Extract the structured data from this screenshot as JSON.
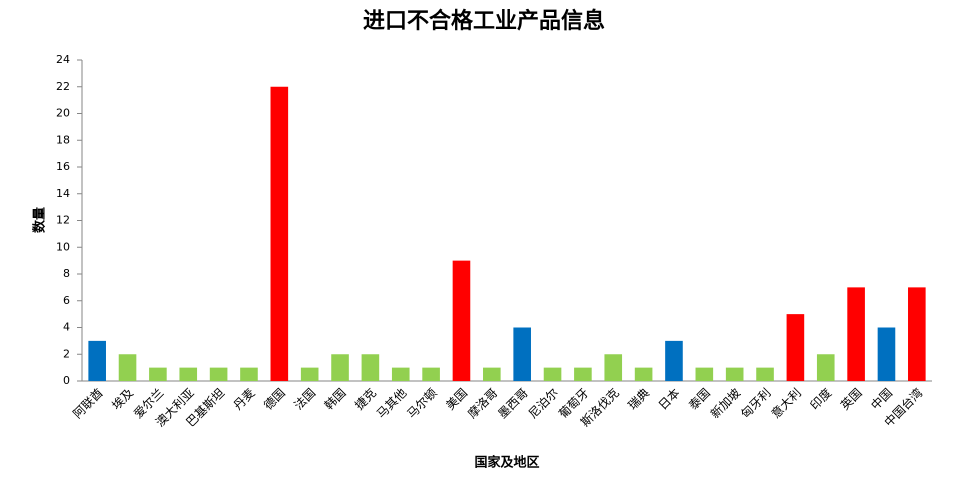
{
  "chart_data": {
    "type": "bar",
    "title": "进口不合格工业产品信息",
    "x_label": "国家及地区",
    "y_label": "数量",
    "categories": [
      "阿联酋",
      "埃及",
      "爱尔兰",
      "澳大利亚",
      "巴基斯坦",
      "丹麦",
      "德国",
      "法国",
      "韩国",
      "捷克",
      "马其他",
      "马尔顿",
      "美国",
      "摩洛哥",
      "墨西哥",
      "尼泊尔",
      "葡萄牙",
      "斯洛伐克",
      "瑞典",
      "日本",
      "泰国",
      "新加坡",
      "匈牙利",
      "意大利",
      "印度",
      "英国",
      "中国",
      "中国台湾"
    ],
    "values": [
      3,
      2,
      1,
      1,
      1,
      1,
      22,
      1,
      2,
      2,
      1,
      1,
      9,
      1,
      4,
      1,
      1,
      2,
      1,
      3,
      1,
      1,
      1,
      5,
      2,
      7,
      4,
      7
    ],
    "colors": [
      "#0070c0",
      "#92d050",
      "#92d050",
      "#92d050",
      "#92d050",
      "#92d050",
      "#ff0000",
      "#92d050",
      "#92d050",
      "#92d050",
      "#92d050",
      "#92d050",
      "#ff0000",
      "#92d050",
      "#0070c0",
      "#92d050",
      "#92d050",
      "#92d050",
      "#92d050",
      "#0070c0",
      "#92d050",
      "#92d050",
      "#92d050",
      "#ff0000",
      "#92d050",
      "#ff0000",
      "#0070c0",
      "#ff0000"
    ],
    "ylim": [
      0,
      24
    ],
    "yticks": [
      0,
      2,
      4,
      6,
      8,
      10,
      12,
      14,
      16,
      18,
      20,
      22,
      24
    ],
    "grid": false
  }
}
